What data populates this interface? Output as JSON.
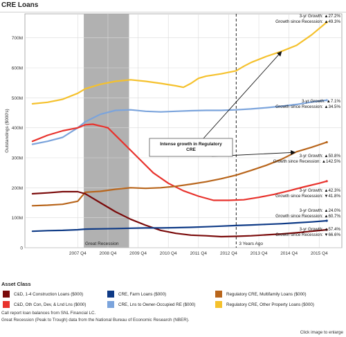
{
  "title": "CRE Loans",
  "legend": {
    "heading": "Asset Class",
    "items": [
      {
        "label": "C&D, 1-4 Construction Loans ($000)",
        "color": "#7a0a0a"
      },
      {
        "label": "CRE, Farm Loans ($000)",
        "color": "#0e3a86"
      },
      {
        "label": "Regulatory CRE, Multifamily Loans ($000)",
        "color": "#b8651b"
      },
      {
        "label": "C&D, Oth Con, Dev, & Lnd Lns ($000)",
        "color": "#e8322c"
      },
      {
        "label": "CRE, Lns to Owner-Occupied RE ($000)",
        "color": "#7ba4dc"
      },
      {
        "label": "Regulatory CRE, Other Property Loans ($000)",
        "color": "#f5c12c"
      }
    ]
  },
  "footnotes": [
    "Call report loan balances from SNL Financial LC.",
    "Great Recession (Peak to Trough) data from the National Bureau of Economic Research (NBER)."
  ],
  "enlarge_text": "Click image to enlarge",
  "chart_data": {
    "type": "line",
    "ylabel": "Outstandings ($000's)",
    "y_ticks": [
      "0",
      "100M",
      "200M",
      "300M",
      "400M",
      "500M",
      "600M",
      "700M"
    ],
    "x_ticks": [
      "2007 Q4",
      "2008 Q4",
      "2009 Q4",
      "2010 Q4",
      "2011 Q4",
      "2012 Q4",
      "2013 Q4",
      "2014 Q4",
      "2015 Q4"
    ],
    "x_start": 2006.0,
    "x_end": 2016.5,
    "ylim": [
      0,
      780
    ],
    "grid": true,
    "recession": {
      "start": 2007.95,
      "end": 2009.45,
      "label": "Great Recession"
    },
    "three_years_ago": {
      "x": 2013.0,
      "label": "3 Years Ago"
    },
    "annotation": {
      "text": [
        "Intense growth in Regulatory",
        "CRE"
      ]
    },
    "series": [
      {
        "name": "Regulatory CRE, Other Property Loans ($000)",
        "color": "#f5c12c",
        "x": [
          2006.25,
          2006.75,
          2007.25,
          2007.75,
          2008.0,
          2008.5,
          2009.0,
          2009.5,
          2010.0,
          2010.5,
          2011.0,
          2011.25,
          2011.5,
          2011.75,
          2012.0,
          2012.5,
          2013.0,
          2013.25,
          2013.5,
          2014.0,
          2014.5,
          2015.0,
          2015.5,
          2016.0
        ],
        "y": [
          480,
          485,
          495,
          515,
          530,
          545,
          555,
          560,
          555,
          548,
          540,
          535,
          548,
          565,
          572,
          580,
          590,
          605,
          618,
          638,
          655,
          675,
          710,
          752
        ]
      },
      {
        "name": "CRE, Lns to Owner-Occupied RE ($000)",
        "color": "#7ba4dc",
        "x": [
          2006.25,
          2006.75,
          2007.25,
          2007.75,
          2008.0,
          2008.5,
          2009.0,
          2009.5,
          2010.0,
          2010.5,
          2011.0,
          2011.5,
          2012.0,
          2012.5,
          2013.0,
          2013.5,
          2014.0,
          2014.5,
          2015.0,
          2015.5,
          2016.0
        ],
        "y": [
          345,
          355,
          368,
          400,
          420,
          445,
          458,
          460,
          455,
          453,
          455,
          457,
          458,
          458,
          460,
          463,
          467,
          472,
          478,
          486,
          492
        ]
      },
      {
        "name": "C&D, Oth Con, Dev, & Lnd Lns ($000)",
        "color": "#e8322c",
        "x": [
          2006.25,
          2006.75,
          2007.25,
          2007.75,
          2008.0,
          2008.25,
          2008.75,
          2009.25,
          2009.75,
          2010.25,
          2010.75,
          2011.25,
          2011.75,
          2012.25,
          2012.75,
          2013.25,
          2013.75,
          2014.25,
          2014.75,
          2015.25,
          2015.75,
          2016.0
        ],
        "y": [
          355,
          375,
          390,
          400,
          410,
          412,
          400,
          350,
          300,
          250,
          215,
          190,
          172,
          158,
          158,
          160,
          168,
          178,
          190,
          203,
          215,
          222
        ]
      },
      {
        "name": "Regulatory CRE, Multifamily Loans ($000)",
        "color": "#b8651b",
        "x": [
          2006.25,
          2006.75,
          2007.25,
          2007.75,
          2008.0,
          2008.5,
          2009.0,
          2009.5,
          2010.0,
          2010.5,
          2011.0,
          2011.5,
          2012.0,
          2012.5,
          2013.0,
          2013.5,
          2014.0,
          2014.5,
          2015.0,
          2015.5,
          2016.0
        ],
        "y": [
          140,
          142,
          145,
          155,
          185,
          188,
          195,
          200,
          198,
          200,
          205,
          212,
          220,
          230,
          242,
          258,
          275,
          295,
          320,
          335,
          352
        ]
      },
      {
        "name": "C&D, 1-4 Construction Loans ($000)",
        "color": "#7a0a0a",
        "x": [
          2006.25,
          2006.75,
          2007.25,
          2007.75,
          2008.0,
          2008.5,
          2009.0,
          2009.5,
          2010.0,
          2010.5,
          2011.0,
          2011.5,
          2012.0,
          2012.5,
          2013.0,
          2013.5,
          2014.0,
          2014.5,
          2015.0,
          2015.5,
          2016.0
        ],
        "y": [
          180,
          183,
          187,
          187,
          180,
          150,
          120,
          95,
          75,
          58,
          48,
          42,
          40,
          37,
          38,
          40,
          43,
          46,
          50,
          55,
          60
        ]
      },
      {
        "name": "CRE, Farm Loans ($000)",
        "color": "#0e3a86",
        "x": [
          2006.25,
          2006.75,
          2007.25,
          2007.75,
          2008.0,
          2008.5,
          2009.0,
          2009.5,
          2010.0,
          2010.5,
          2011.0,
          2011.5,
          2012.0,
          2012.5,
          2013.0,
          2013.5,
          2014.0,
          2014.5,
          2015.0,
          2015.5,
          2016.0
        ],
        "y": [
          55,
          57,
          58,
          60,
          62,
          63,
          64,
          65,
          66,
          66,
          67,
          68,
          70,
          72,
          74,
          76,
          78,
          80,
          83,
          86,
          90
        ]
      }
    ],
    "growth_labels": [
      {
        "lines": [
          "3-yr Growth: ▲27.2%",
          "Growth since Recession: ▲49.3%"
        ]
      },
      {
        "lines": [
          "3-yr Growth: ▲7.1%",
          "Growth since Recession: ▲34.5%"
        ]
      },
      {
        "lines": [
          "3-yr Growth: ▲50.8%",
          "Growth since Recession: ▲142.5%"
        ]
      },
      {
        "lines": [
          "3-yr Growth: ▲42.3%",
          "Growth since Recession: ▼41.8%"
        ]
      },
      {
        "lines": [
          "3-yr Growth: ▲24.0%",
          "Growth since Recession: ▲60.7%"
        ]
      },
      {
        "lines": [
          "3-yr Growth: ▲57.4%",
          "Growth since Recession: ▼66.6%"
        ]
      }
    ]
  }
}
